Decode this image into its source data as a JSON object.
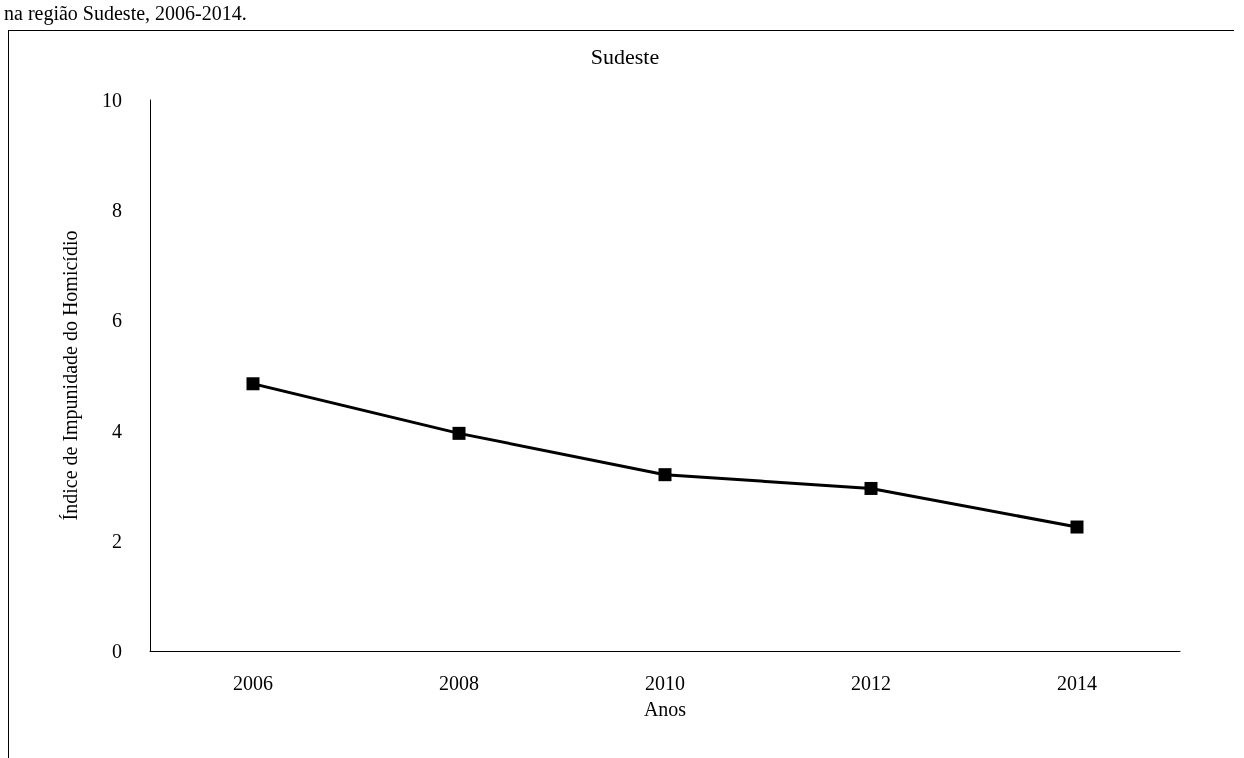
{
  "chart_data": {
    "type": "line",
    "title": "Sudeste",
    "xlabel": "Anos",
    "ylabel": "Índice de Impunidade do Homicídio",
    "annotations": [
      "na região Sudeste, 2006-2014."
    ],
    "categories": [
      "2006",
      "2008",
      "2010",
      "2012",
      "2014"
    ],
    "series": [
      {
        "color": "#000000",
        "values": [
          4.85,
          3.95,
          3.2,
          2.95,
          2.25
        ]
      }
    ],
    "ylim": [
      0,
      10
    ],
    "yticks": [
      0,
      2,
      4,
      6,
      8,
      10
    ],
    "grid": false,
    "marker": "square",
    "line_style": "solid"
  }
}
